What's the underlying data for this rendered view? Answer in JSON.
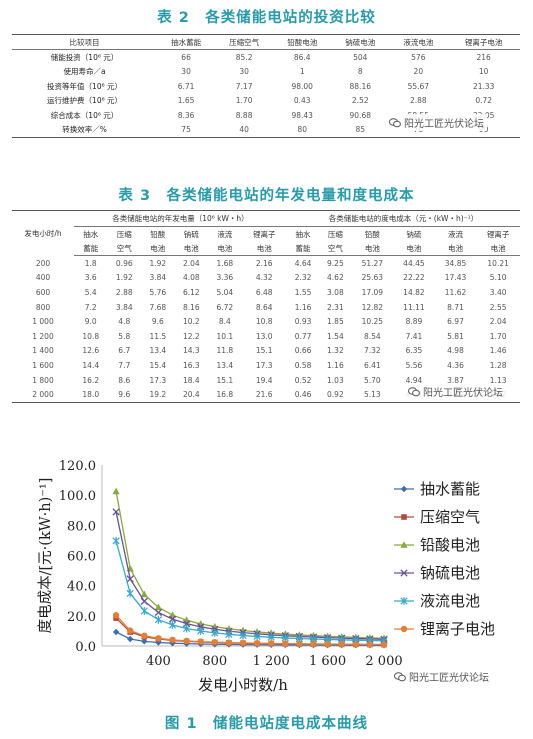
{
  "table2": {
    "caption": "表 2　各类储能电站的投资比较",
    "headers": [
      "比较项目",
      "抽水蓄能",
      "压缩空气",
      "铅酸电池",
      "钠硫电池",
      "液流电池",
      "锂离子电池"
    ],
    "rows": [
      [
        "储能投资（10⁶ 元）",
        "66",
        "85.2",
        "86.4",
        "504",
        "576",
        "216"
      ],
      [
        "使用寿命／a",
        "30",
        "30",
        "1",
        "8",
        "20",
        "10"
      ],
      [
        "投资等年值（10⁶ 元）",
        "6.71",
        "7.17",
        "98.00",
        "88.16",
        "55.67",
        "21.33"
      ],
      [
        "运行维护费（10⁶ 元）",
        "1.65",
        "1.70",
        "0.43",
        "2.52",
        "2.88",
        "0.72"
      ],
      [
        "综合成本（10⁶ 元）",
        "8.36",
        "8.88",
        "98.43",
        "90.68",
        "58.55",
        "22.05"
      ],
      [
        "转换效率／%",
        "75",
        "40",
        "80",
        "85",
        "70",
        "90"
      ]
    ]
  },
  "table3": {
    "caption": "表 3　各类储能电站的年发电量和度电成本",
    "col0_header": "发电小时/h",
    "group1_header": "各类储能电站的年发电量（10⁶ kW・h）",
    "group2_header": "各类储能电站的度电成本（元・(kW・h)⁻¹）",
    "sub_headers_top": [
      "抽水",
      "压缩",
      "铅酸",
      "钠硫",
      "液流",
      "锂离子",
      "抽水",
      "压缩",
      "铅酸",
      "钠硫",
      "液流",
      "锂离子"
    ],
    "sub_headers_bottom": [
      "蓄能",
      "空气",
      "电池",
      "电池",
      "电池",
      "电池",
      "蓄能",
      "空气",
      "电池",
      "电池",
      "电池",
      "电池"
    ],
    "rows": [
      [
        "200",
        "1.8",
        "0.96",
        "1.92",
        "2.04",
        "1.68",
        "2.16",
        "4.64",
        "9.25",
        "51.27",
        "44.45",
        "34.85",
        "10.21"
      ],
      [
        "400",
        "3.6",
        "1.92",
        "3.84",
        "4.08",
        "3.36",
        "4.32",
        "2.32",
        "4.62",
        "25.63",
        "22.22",
        "17.43",
        "5.10"
      ],
      [
        "600",
        "5.4",
        "2.88",
        "5.76",
        "6.12",
        "5.04",
        "6.48",
        "1.55",
        "3.08",
        "17.09",
        "14.82",
        "11.62",
        "3.40"
      ],
      [
        "800",
        "7.2",
        "3.84",
        "7.68",
        "8.16",
        "6.72",
        "8.64",
        "1.16",
        "2.31",
        "12.82",
        "11.11",
        "8.71",
        "2.55"
      ],
      [
        "1 000",
        "9.0",
        "4.8",
        "9.6",
        "10.2",
        "8.4",
        "10.8",
        "0.93",
        "1.85",
        "10.25",
        "8.89",
        "6.97",
        "2.04"
      ],
      [
        "1 200",
        "10.8",
        "5.8",
        "11.5",
        "12.2",
        "10.1",
        "13.0",
        "0.77",
        "1.54",
        "8.54",
        "7.41",
        "5.81",
        "1.70"
      ],
      [
        "1 400",
        "12.6",
        "6.7",
        "13.4",
        "14.3",
        "11.8",
        "15.1",
        "0.66",
        "1.32",
        "7.32",
        "6.35",
        "4.98",
        "1.46"
      ],
      [
        "1 600",
        "14.4",
        "7.7",
        "15.4",
        "16.3",
        "13.4",
        "17.3",
        "0.58",
        "1.16",
        "6.41",
        "5.56",
        "4.36",
        "1.28"
      ],
      [
        "1 800",
        "16.2",
        "8.6",
        "17.3",
        "18.4",
        "15.1",
        "19.4",
        "0.52",
        "1.03",
        "5.70",
        "4.94",
        "3.87",
        "1.13"
      ],
      [
        "2 000",
        "18.0",
        "9.6",
        "19.2",
        "20.4",
        "16.8",
        "21.6",
        "0.46",
        "0.92",
        "5.13",
        "4.44",
        "3.49",
        "1.02"
      ]
    ]
  },
  "watermark": {
    "text": "阳光工匠光伏论坛"
  },
  "figure": {
    "caption": "图 1　储能电站度电成本曲线"
  },
  "chart_data": {
    "type": "line",
    "xlabel": "发电小时数/h",
    "ylabel": "度电成本/[元·(kW·h)⁻¹]",
    "ylim": [
      0,
      120
    ],
    "xlim": [
      0,
      2000
    ],
    "y_ticks": [
      "0.0",
      "20.0",
      "40.0",
      "60.0",
      "80.0",
      "100.0",
      "120.0"
    ],
    "x_ticks": [
      "400",
      "800",
      "1 200",
      "1 600",
      "2 000"
    ],
    "x_tick_values": [
      400,
      800,
      1200,
      1600,
      2000
    ],
    "y_tick_values": [
      0,
      20,
      40,
      60,
      80,
      100,
      120
    ],
    "x": [
      100,
      200,
      300,
      400,
      500,
      600,
      700,
      800,
      900,
      1000,
      1100,
      1200,
      1300,
      1400,
      1500,
      1600,
      1700,
      1800,
      1900,
      2000
    ],
    "series": [
      {
        "name": "抽水蓄能",
        "color": "#3b6fb0",
        "marker": "diamond",
        "values": [
          9.28,
          4.64,
          3.09,
          2.32,
          1.86,
          1.55,
          1.33,
          1.16,
          1.03,
          0.93,
          0.84,
          0.77,
          0.71,
          0.66,
          0.62,
          0.58,
          0.55,
          0.52,
          0.49,
          0.46
        ]
      },
      {
        "name": "压缩空气",
        "color": "#b04a3c",
        "marker": "square",
        "values": [
          18.5,
          9.25,
          6.17,
          4.62,
          3.7,
          3.08,
          2.64,
          2.31,
          2.06,
          1.85,
          1.68,
          1.54,
          1.42,
          1.32,
          1.23,
          1.16,
          1.09,
          1.03,
          0.97,
          0.92
        ]
      },
      {
        "name": "铅酸电池",
        "color": "#8aa840",
        "marker": "triangle",
        "values": [
          102.5,
          51.27,
          34.18,
          25.63,
          20.51,
          17.09,
          14.65,
          12.82,
          11.39,
          10.25,
          9.32,
          8.54,
          7.89,
          7.32,
          6.84,
          6.41,
          6.03,
          5.7,
          5.4,
          5.13
        ]
      },
      {
        "name": "钠硫电池",
        "color": "#6a4f96",
        "marker": "x",
        "values": [
          88.9,
          44.45,
          29.63,
          22.22,
          17.78,
          14.82,
          12.7,
          11.11,
          9.88,
          8.89,
          8.08,
          7.41,
          6.84,
          6.35,
          5.93,
          5.56,
          5.23,
          4.94,
          4.68,
          4.44
        ]
      },
      {
        "name": "液流电池",
        "color": "#3aa7c9",
        "marker": "star",
        "values": [
          69.7,
          34.85,
          23.23,
          17.43,
          13.94,
          11.62,
          9.96,
          8.71,
          7.74,
          6.97,
          6.34,
          5.81,
          5.36,
          4.98,
          4.65,
          4.36,
          4.1,
          3.87,
          3.67,
          3.49
        ]
      },
      {
        "name": "锂离子电池",
        "color": "#e0813a",
        "marker": "circle",
        "values": [
          20.4,
          10.21,
          6.81,
          5.1,
          4.08,
          3.4,
          2.92,
          2.55,
          2.27,
          2.04,
          1.86,
          1.7,
          1.57,
          1.46,
          1.36,
          1.28,
          1.2,
          1.13,
          1.07,
          1.02
        ]
      }
    ]
  }
}
